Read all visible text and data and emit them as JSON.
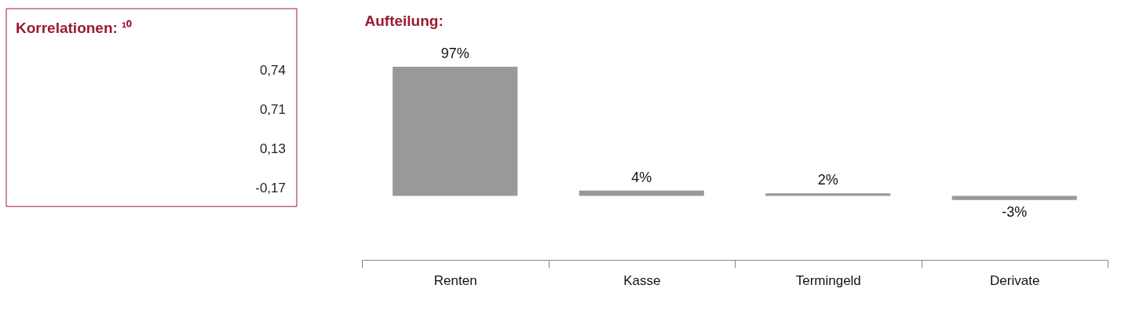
{
  "chart_data": [
    {
      "type": "other",
      "title": "Korrelationen: ¹⁰",
      "annotations": [
        "0,74",
        "0,71",
        "0,13",
        "-0,17"
      ]
    },
    {
      "type": "bar",
      "title": "Aufteilung:",
      "categories": [
        "Renten",
        "Kasse",
        "Termingeld",
        "Derivate"
      ],
      "values": [
        97,
        4,
        2,
        -3
      ],
      "color": "#999999",
      "value_labels": [
        "97%",
        "4%",
        "2%",
        "-3%"
      ],
      "grid": false
    }
  ]
}
